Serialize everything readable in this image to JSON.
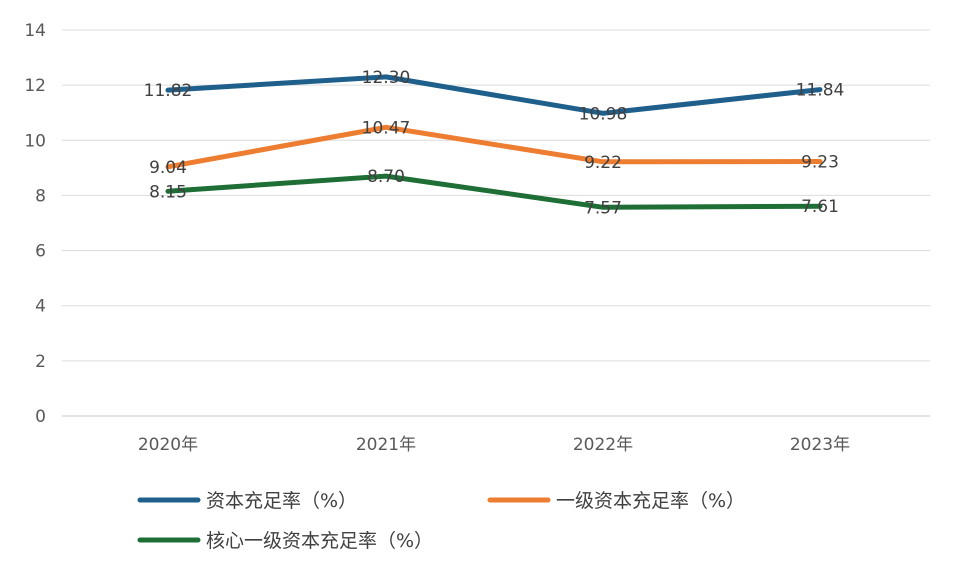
{
  "chart_data": {
    "type": "line",
    "categories": [
      "2020年",
      "2021年",
      "2022年",
      "2023年"
    ],
    "series": [
      {
        "name": "资本充足率（%）",
        "values": [
          11.82,
          12.3,
          10.98,
          11.84
        ],
        "color": "#1f5f8b"
      },
      {
        "name": "一级资本充足率（%）",
        "values": [
          9.04,
          10.47,
          9.22,
          9.23
        ],
        "color": "#ed7d31"
      },
      {
        "name": "核心一级资本充足率（%）",
        "values": [
          8.15,
          8.7,
          7.57,
          7.61
        ],
        "color": "#1e6e35"
      }
    ],
    "ylim": [
      0,
      14
    ],
    "yticks": [
      0,
      2,
      4,
      6,
      8,
      10,
      12,
      14
    ],
    "grid": true,
    "legend_position": "bottom"
  }
}
